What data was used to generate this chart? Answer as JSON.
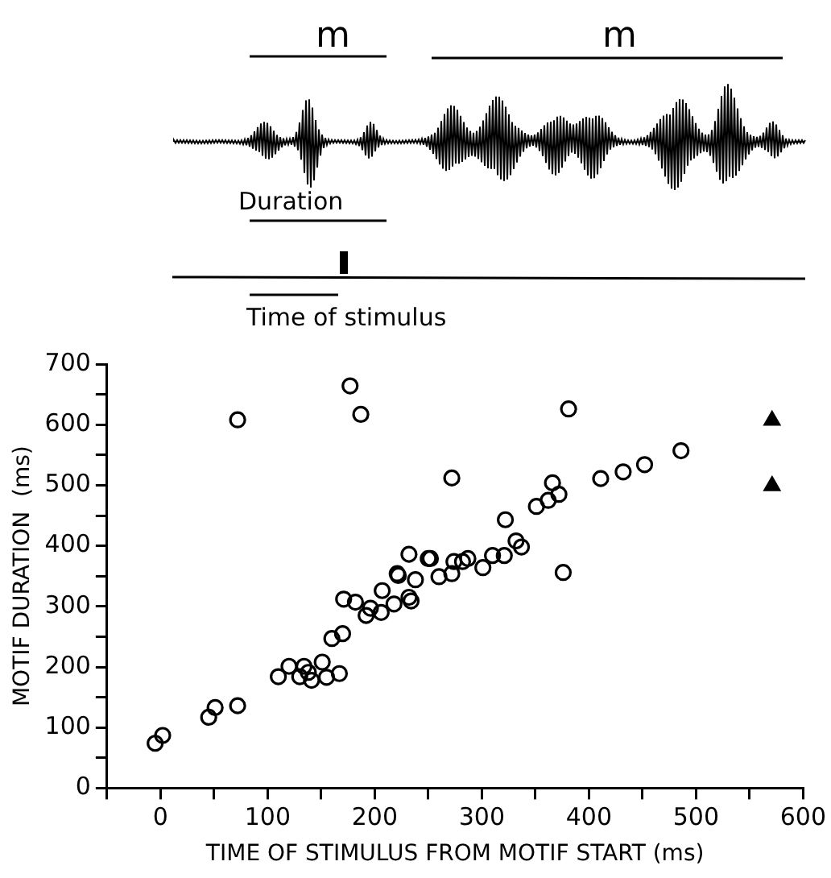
{
  "chart_data": {
    "type": "scatter",
    "xlabel": "TIME OF STIMULUS FROM MOTIF START (ms)",
    "ylabel": "MOTIF DURATION  (ms)",
    "annotations": [
      "m",
      "m",
      "Duration",
      "Time of stimulus"
    ],
    "xlim": [
      -50,
      600
    ],
    "xticks": [
      {
        "value": -50,
        "label": null
      },
      0,
      {
        "value": 50,
        "label": null
      },
      100,
      {
        "value": 150,
        "label": null
      },
      200,
      {
        "value": 250,
        "label": null
      },
      300,
      {
        "value": 350,
        "label": null
      },
      400,
      {
        "value": 450,
        "label": null
      },
      500,
      {
        "value": 550,
        "label": null
      },
      600
    ],
    "ylim": [
      0,
      700
    ],
    "yticks": [
      0,
      {
        "value": 50,
        "label": null
      },
      100,
      {
        "value": 150,
        "label": null
      },
      200,
      {
        "value": 250,
        "label": null
      },
      300,
      {
        "value": 350,
        "label": null
      },
      400,
      {
        "value": 450,
        "label": null
      },
      500,
      {
        "value": 550,
        "label": null
      },
      600,
      {
        "value": 650,
        "label": null
      },
      700
    ],
    "grid": false,
    "legend": false,
    "series": [
      {
        "color": "#000000",
        "marker": "circle",
        "x": [
          -5,
          2,
          45,
          51,
          72,
          110,
          120,
          130,
          134,
          141,
          138,
          151,
          155,
          167,
          160,
          170,
          171,
          182,
          192,
          196,
          206,
          207,
          218,
          222,
          232,
          234,
          238,
          252,
          260,
          272,
          282,
          221,
          232,
          250,
          274,
          287,
          301,
          310,
          321,
          332,
          337,
          322,
          351,
          362,
          372,
          376,
          72,
          177,
          187,
          381,
          272,
          366,
          411,
          432,
          452,
          486
        ],
        "values": [
          74,
          87,
          117,
          133,
          136,
          184,
          201,
          184,
          201,
          178,
          191,
          208,
          183,
          189,
          247,
          255,
          312,
          307,
          285,
          297,
          290,
          326,
          304,
          351,
          386,
          309,
          344,
          379,
          349,
          354,
          374,
          354,
          315,
          379,
          374,
          379,
          364,
          384,
          384,
          408,
          398,
          443,
          465,
          475,
          485,
          356,
          608,
          664,
          617,
          626,
          512,
          504,
          511,
          522,
          534,
          557
        ]
      },
      {
        "color": "#000000",
        "marker": "triangle",
        "x": [
          571,
          571
        ],
        "values": [
          607,
          499
        ]
      }
    ]
  }
}
